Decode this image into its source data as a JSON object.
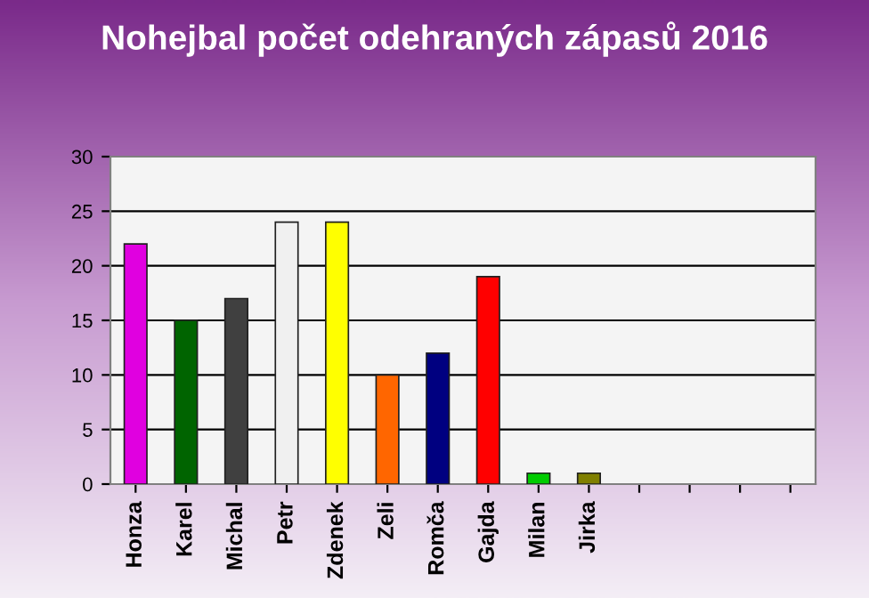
{
  "chart_data": {
    "type": "bar",
    "title": "Nohejbal počet odehraných zápasů 2016",
    "categories": [
      "Honza",
      "Karel",
      "Michal",
      "Petr",
      "Zdenek",
      "Zeli",
      "Romča",
      "Gajda",
      "Milan",
      "Jirka",
      null,
      null,
      null,
      null
    ],
    "values": [
      22,
      15,
      17,
      24,
      24,
      10,
      12,
      19,
      1,
      1,
      null,
      null,
      null,
      null
    ],
    "colors": [
      "#e000e0",
      "#006400",
      "#404040",
      "#f0f0f0",
      "#ffff00",
      "#ff6600",
      "#000080",
      "#ff0000",
      "#00cc00",
      "#808000",
      "#808080",
      "#808080",
      "#808080",
      "#808080"
    ],
    "ylim": [
      0,
      30
    ],
    "yticks": [
      0,
      5,
      10,
      15,
      20,
      25,
      30
    ],
    "grid": "y",
    "legend": false
  }
}
